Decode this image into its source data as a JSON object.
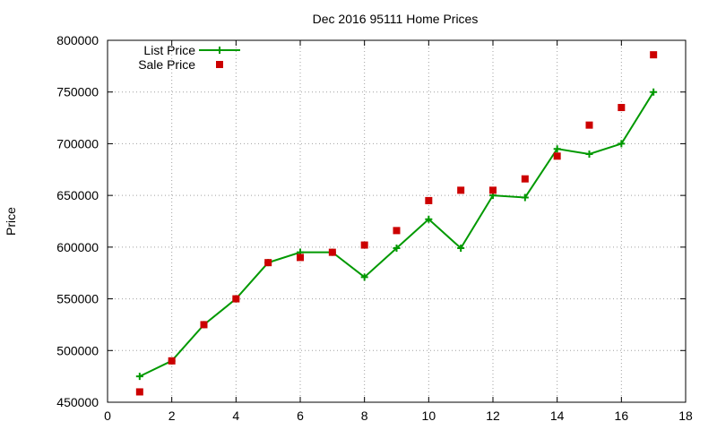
{
  "chart_data": {
    "type": "line",
    "title": "Dec 2016 95111 Home Prices",
    "xlabel": "",
    "ylabel": "Price",
    "xlim": [
      0,
      18
    ],
    "ylim": [
      450000,
      800000
    ],
    "x_ticks": [
      "0",
      "2",
      "4",
      "6",
      "8",
      "10",
      "12",
      "14",
      "16",
      "18"
    ],
    "y_ticks": [
      "450000",
      "500000",
      "550000",
      "600000",
      "650000",
      "700000",
      "750000",
      "800000"
    ],
    "grid": true,
    "legend_position": "top-left",
    "series": [
      {
        "name": "List Price",
        "style": "line+plus",
        "color": "#009900",
        "x": [
          1,
          2,
          3,
          4,
          5,
          6,
          7,
          8,
          9,
          10,
          11,
          12,
          13,
          14,
          15,
          16,
          17
        ],
        "y": [
          475000,
          490000,
          525000,
          550000,
          585000,
          595000,
          595000,
          571000,
          599000,
          627000,
          599000,
          650000,
          648000,
          695000,
          690000,
          700000,
          750000
        ]
      },
      {
        "name": "Sale Price",
        "style": "square",
        "color": "#cc0000",
        "x": [
          1,
          2,
          3,
          4,
          5,
          6,
          7,
          8,
          9,
          10,
          11,
          12,
          13,
          14,
          15,
          16,
          17
        ],
        "y": [
          460000,
          490000,
          525000,
          550000,
          585000,
          590000,
          595000,
          602000,
          616000,
          645000,
          655000,
          655000,
          666000,
          688000,
          718000,
          735000,
          786000
        ]
      }
    ]
  }
}
